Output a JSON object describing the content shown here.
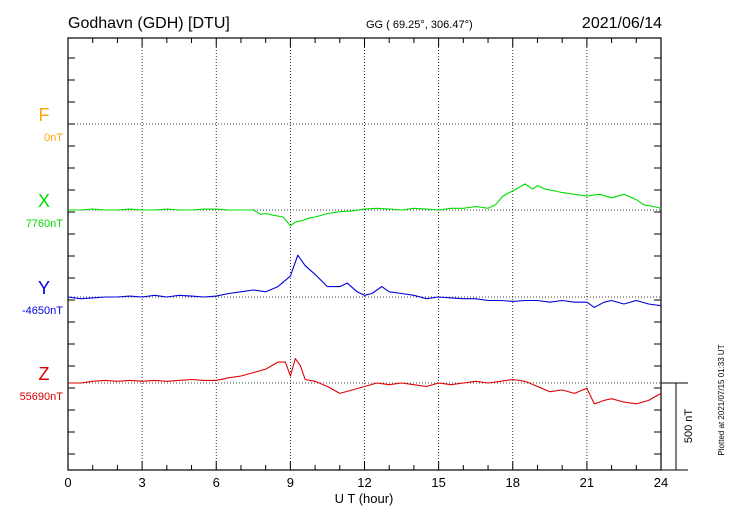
{
  "header": {
    "station": "Godhavn (GDH)  [DTU]",
    "coords": "GG ( 69.25°, 306.47°)",
    "date": "2021/06/14"
  },
  "footer_note": "Plotted at 2021/07/15 01:33 UT",
  "chart_data": {
    "type": "line",
    "xlabel": "U T (hour)",
    "xlim": [
      0,
      24
    ],
    "xticks": [
      0,
      3,
      6,
      9,
      12,
      15,
      18,
      21,
      24
    ],
    "xtick_labels": [
      "0",
      "3",
      "6",
      "9",
      "12",
      "15",
      "18",
      "21",
      "24"
    ],
    "scale_bar_label": "500 nT",
    "scale_bar_nT": 500,
    "grid": true,
    "series": [
      {
        "name": "F",
        "baseline_label": "0nT",
        "color": "#ffa500",
        "x": [],
        "y": []
      },
      {
        "name": "X",
        "baseline_label": "7760nT",
        "color": "#00dd00",
        "x": [
          0,
          0.5,
          1,
          1.5,
          2,
          2.5,
          3,
          3.5,
          4,
          4.5,
          5,
          5.5,
          6,
          6.5,
          7,
          7.5,
          7.8,
          8,
          8.3,
          8.7,
          9,
          9.2,
          9.5,
          9.8,
          10,
          10.5,
          11,
          11.5,
          12,
          12.5,
          13,
          13.5,
          14,
          14.5,
          15,
          15.5,
          16,
          16.5,
          17,
          17.3,
          17.6,
          18,
          18.5,
          18.8,
          19,
          19.3,
          19.7,
          20,
          20.5,
          21,
          21.5,
          22,
          22.5,
          23,
          23.3,
          23.7,
          24
        ],
        "y": [
          0,
          0,
          5,
          0,
          0,
          5,
          0,
          0,
          5,
          0,
          0,
          5,
          5,
          0,
          0,
          0,
          -25,
          -20,
          -30,
          -40,
          -90,
          -70,
          -60,
          -45,
          -40,
          -20,
          -10,
          -5,
          5,
          10,
          5,
          0,
          10,
          5,
          0,
          10,
          10,
          20,
          10,
          30,
          80,
          110,
          150,
          120,
          140,
          120,
          110,
          100,
          90,
          80,
          90,
          70,
          90,
          60,
          30,
          20,
          10
        ]
      },
      {
        "name": "Y",
        "baseline_label": "-4650nT",
        "color": "#0000dd",
        "x": [
          0,
          0.5,
          1,
          1.5,
          2,
          2.5,
          3,
          3.5,
          4,
          4.5,
          5,
          5.5,
          6,
          6.5,
          7,
          7.5,
          8,
          8.5,
          9,
          9.3,
          9.6,
          10,
          10.5,
          11,
          11.3,
          11.7,
          12,
          12.3,
          12.7,
          13,
          13.5,
          14,
          14.5,
          15,
          15.5,
          16,
          16.5,
          17,
          17.5,
          18,
          18.5,
          19,
          19.5,
          20,
          20.5,
          21,
          21.3,
          21.7,
          22,
          22.5,
          23,
          23.5,
          24
        ],
        "y": [
          0,
          -10,
          -5,
          0,
          0,
          5,
          0,
          10,
          0,
          10,
          5,
          0,
          5,
          20,
          30,
          40,
          30,
          60,
          120,
          240,
          180,
          130,
          60,
          60,
          80,
          30,
          10,
          20,
          60,
          30,
          20,
          10,
          -10,
          0,
          -5,
          -10,
          -10,
          -20,
          -20,
          -25,
          -20,
          -20,
          -30,
          -20,
          -30,
          -30,
          -60,
          -30,
          -20,
          -40,
          -20,
          -40,
          -50
        ]
      },
      {
        "name": "Z",
        "baseline_label": "55690nT",
        "color": "#dd0000",
        "x": [
          0,
          0.5,
          1,
          1.5,
          2,
          2.5,
          3,
          3.5,
          4,
          4.5,
          5,
          5.5,
          6,
          6.5,
          7,
          7.5,
          8,
          8.5,
          8.8,
          9,
          9.2,
          9.4,
          9.6,
          10,
          10.5,
          11,
          11.5,
          12,
          12.5,
          13,
          13.5,
          14,
          14.5,
          15,
          15.5,
          16,
          16.5,
          17,
          17.5,
          18,
          18.5,
          19,
          19.5,
          20,
          20.5,
          21,
          21.3,
          21.7,
          22,
          22.5,
          23,
          23.5,
          24
        ],
        "y": [
          0,
          0,
          10,
          15,
          10,
          15,
          10,
          15,
          10,
          15,
          20,
          15,
          15,
          30,
          40,
          60,
          80,
          120,
          120,
          40,
          140,
          100,
          20,
          10,
          -20,
          -60,
          -40,
          -20,
          0,
          -10,
          0,
          -10,
          -20,
          0,
          -10,
          0,
          10,
          0,
          10,
          20,
          10,
          -20,
          -50,
          -40,
          -60,
          -30,
          -120,
          -100,
          -90,
          -110,
          -120,
          -100,
          -60
        ]
      }
    ]
  }
}
